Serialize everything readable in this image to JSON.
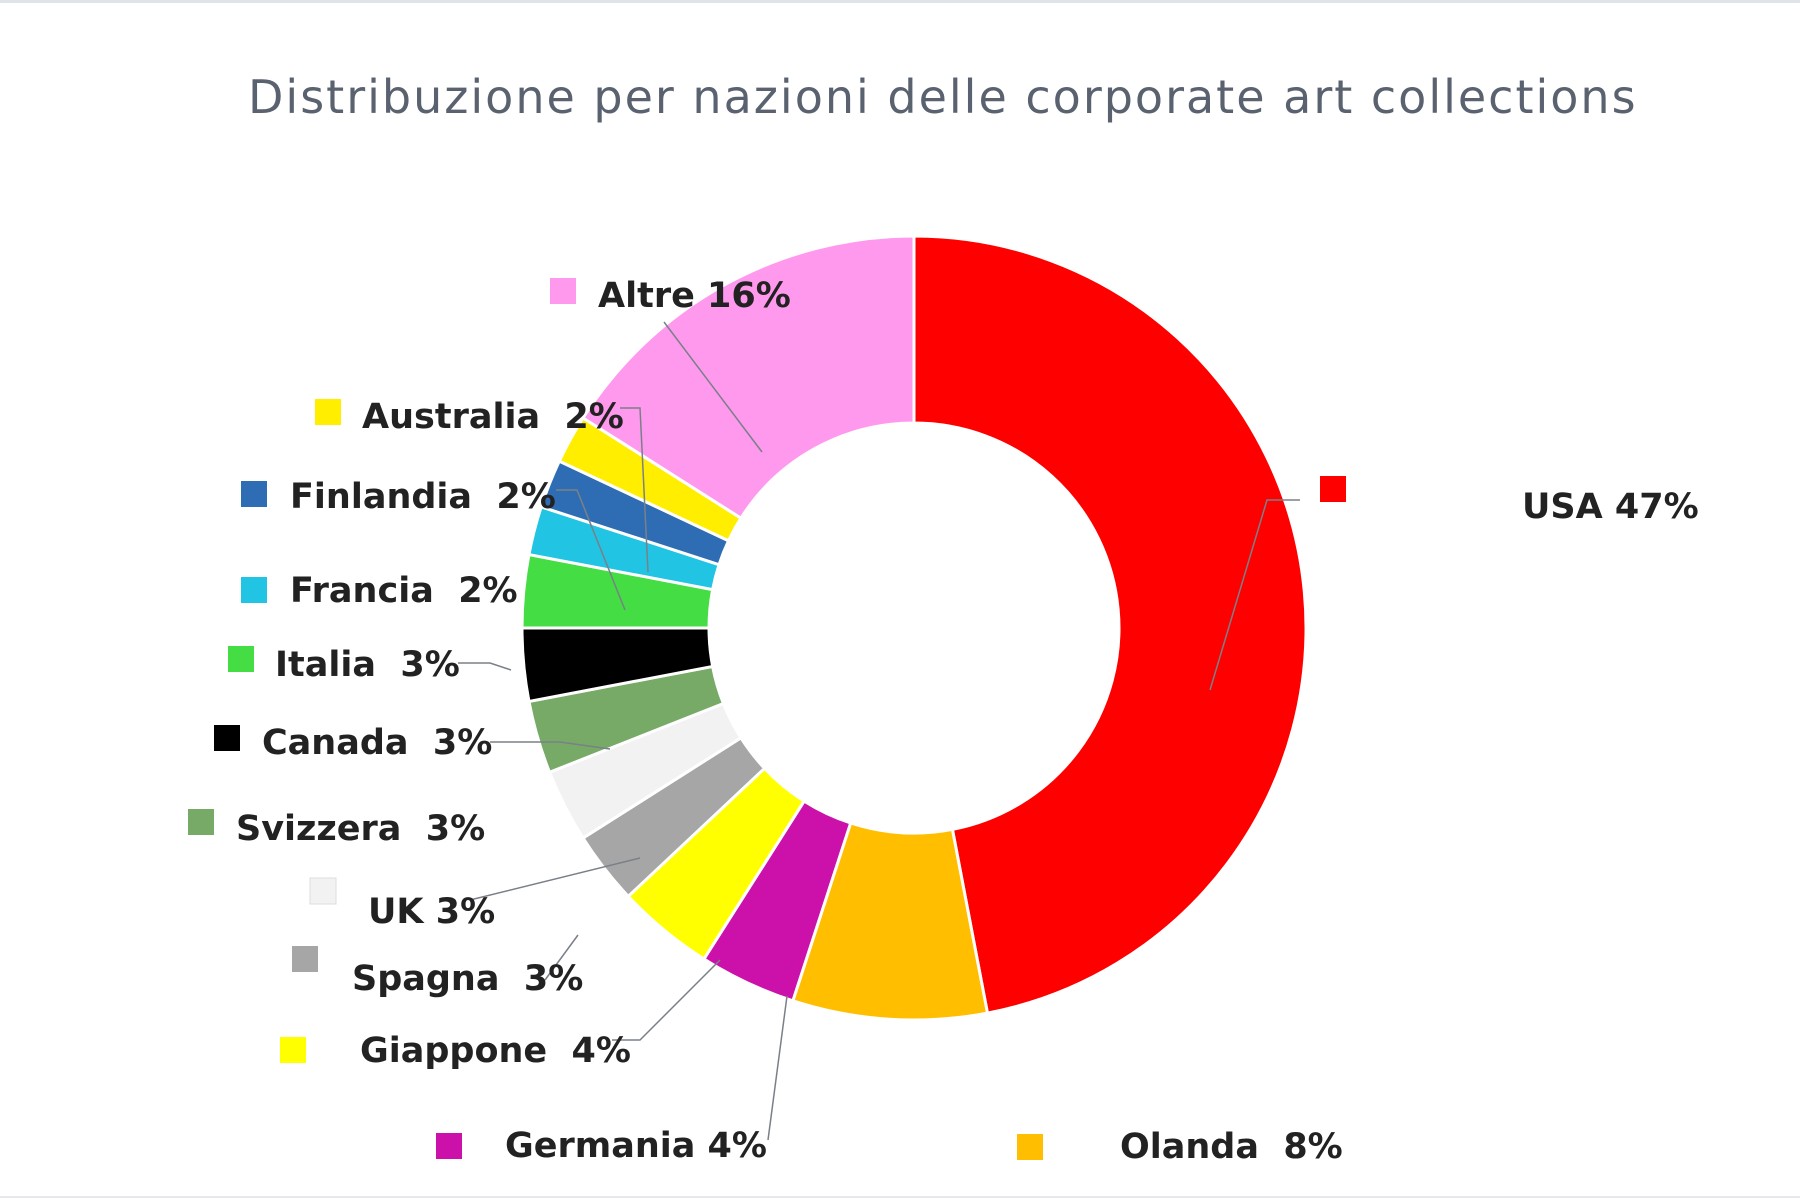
{
  "chart_data": {
    "type": "pie",
    "title": "Distribuzione per nazioni delle corporate art collections",
    "unit": "%",
    "slices": [
      {
        "label": "USA",
        "value": 47,
        "display": "USA 47%",
        "color": "#ff0000"
      },
      {
        "label": "Olanda",
        "value": 8,
        "display": "Olanda  8%",
        "color": "#ffbf00"
      },
      {
        "label": "Germania",
        "value": 4,
        "display": "Germania 4%",
        "color": "#cc11aa"
      },
      {
        "label": "Giappone",
        "value": 4,
        "display": "Giappone  4%",
        "color": "#ffff00"
      },
      {
        "label": "Spagna",
        "value": 3,
        "display": "Spagna  3%",
        "color": "#a6a6a6"
      },
      {
        "label": "UK",
        "value": 3,
        "display": "UK 3%",
        "color": "#f2f2f2"
      },
      {
        "label": "Svizzera",
        "value": 3,
        "display": "Svizzera  3%",
        "color": "#77aa66"
      },
      {
        "label": "Canada",
        "value": 3,
        "display": "Canada  3%",
        "color": "#000000"
      },
      {
        "label": "Italia",
        "value": 3,
        "display": "Italia  3%",
        "color": "#44dd44"
      },
      {
        "label": "Francia",
        "value": 2,
        "display": "Francia  2%",
        "color": "#22c4e4"
      },
      {
        "label": "Finlandia",
        "value": 2,
        "display": "Finlandia  2%",
        "color": "#2e6db4"
      },
      {
        "label": "Australia",
        "value": 2,
        "display": "Australia  2%",
        "color": "#ffee00"
      },
      {
        "label": "Altre",
        "value": 16,
        "display": "Altre 16%",
        "color": "#ff99ee"
      }
    ],
    "legend": "around chart with leader lines",
    "style": "donut"
  }
}
